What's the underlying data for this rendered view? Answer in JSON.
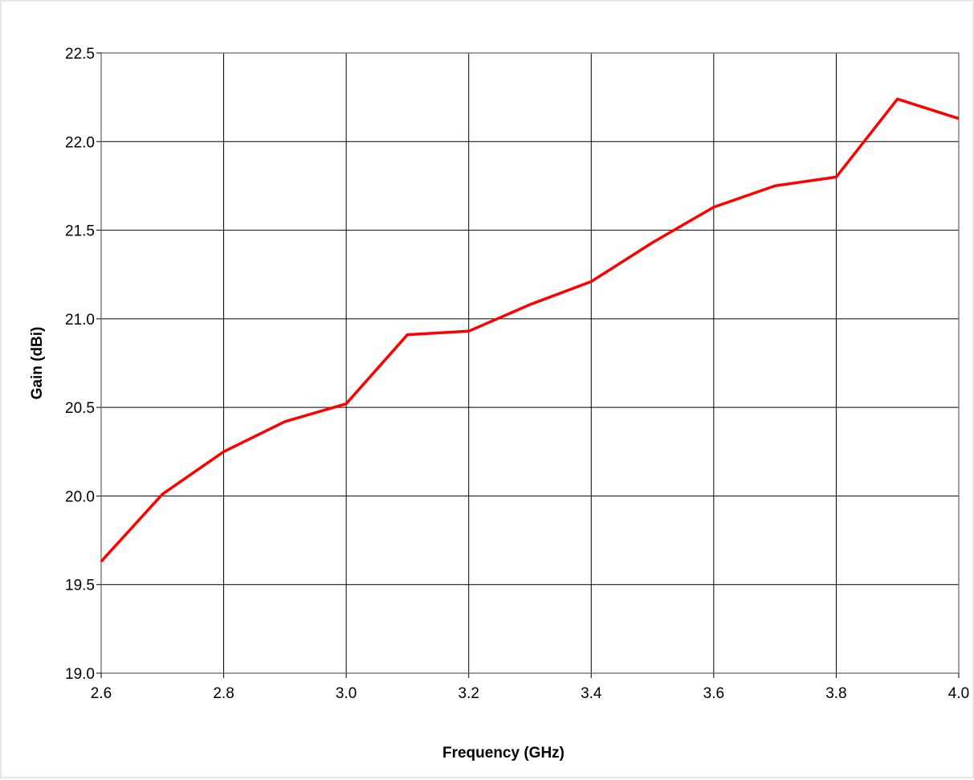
{
  "chart_data": {
    "type": "line",
    "title": "",
    "xlabel": "Frequency (GHz)",
    "ylabel": "Gain (dBi)",
    "xlim": [
      2.6,
      4.0
    ],
    "ylim": [
      19.0,
      22.5
    ],
    "x_ticks": [
      "2.6",
      "2.8",
      "3.0",
      "3.2",
      "3.4",
      "3.6",
      "3.8",
      "4.0"
    ],
    "y_ticks": [
      "19.0",
      "19.5",
      "20.0",
      "20.5",
      "21.0",
      "21.5",
      "22.0",
      "22.5"
    ],
    "grid": true,
    "legend": "none",
    "series": [
      {
        "color": "#ff0000",
        "x": [
          2.6,
          2.7,
          2.8,
          2.9,
          3.0,
          3.1,
          3.2,
          3.3,
          3.4,
          3.5,
          3.6,
          3.7,
          3.8,
          3.9,
          4.0
        ],
        "y": [
          19.63,
          20.01,
          20.25,
          20.42,
          20.52,
          20.91,
          20.93,
          21.08,
          21.21,
          21.43,
          21.63,
          21.75,
          21.8,
          22.24,
          22.13
        ]
      }
    ]
  }
}
